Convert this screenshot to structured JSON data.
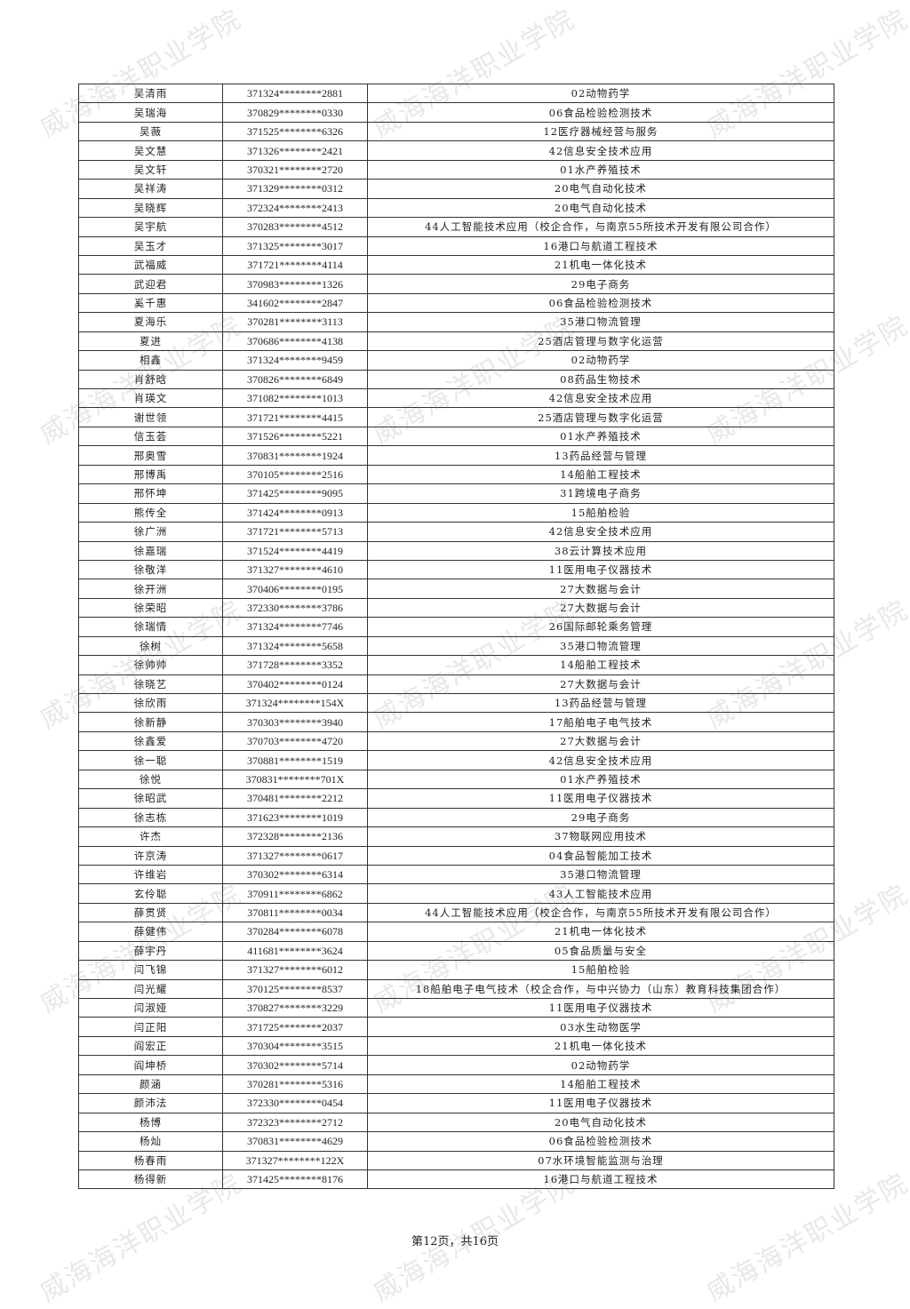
{
  "watermark": "威海海洋职业学院",
  "rows": [
    [
      "吴清雨",
      "371324********2881",
      "02动物药学"
    ],
    [
      "吴瑞海",
      "370829********0330",
      "06食品检验检测技术"
    ],
    [
      "吴薇",
      "371525********6326",
      "12医疗器械经营与服务"
    ],
    [
      "吴文慧",
      "371326********2421",
      "42信息安全技术应用"
    ],
    [
      "吴文轩",
      "370321********2720",
      "01水产养殖技术"
    ],
    [
      "吴祥涛",
      "371329********0312",
      "20电气自动化技术"
    ],
    [
      "吴晓辉",
      "372324********2413",
      "20电气自动化技术"
    ],
    [
      "吴宇航",
      "370283********4512",
      "44人工智能技术应用（校企合作，与南京55所技术开发有限公司合作）"
    ],
    [
      "吴玉才",
      "371325********3017",
      "16港口与航道工程技术"
    ],
    [
      "武福威",
      "371721********4114",
      "21机电一体化技术"
    ],
    [
      "武迎君",
      "370983********1326",
      "29电子商务"
    ],
    [
      "奚千惠",
      "341602********2847",
      "06食品检验检测技术"
    ],
    [
      "夏海乐",
      "370281********3113",
      "35港口物流管理"
    ],
    [
      "夏进",
      "370686********4138",
      "25酒店管理与数字化运营"
    ],
    [
      "相鑫",
      "371324********9459",
      "02动物药学"
    ],
    [
      "肖舒晗",
      "370826********6849",
      "08药品生物技术"
    ],
    [
      "肖瑛文",
      "371082********1013",
      "42信息安全技术应用"
    ],
    [
      "谢世领",
      "371721********4415",
      "25酒店管理与数字化运营"
    ],
    [
      "信玉荟",
      "371526********5221",
      "01水产养殖技术"
    ],
    [
      "邢奥雪",
      "370831********1924",
      "13药品经营与管理"
    ],
    [
      "邢博禹",
      "370105********2516",
      "14船舶工程技术"
    ],
    [
      "邢怀坤",
      "371425********9095",
      "31跨境电子商务"
    ],
    [
      "熊传全",
      "371424********0913",
      "15船舶检验"
    ],
    [
      "徐广洲",
      "371721********5713",
      "42信息安全技术应用"
    ],
    [
      "徐嘉瑞",
      "371524********4419",
      "38云计算技术应用"
    ],
    [
      "徐敬洋",
      "371327********4610",
      "11医用电子仪器技术"
    ],
    [
      "徐开洲",
      "370406********0195",
      "27大数据与会计"
    ],
    [
      "徐荣昭",
      "372330********3786",
      "27大数据与会计"
    ],
    [
      "徐瑞情",
      "371324********7746",
      "26国际邮轮乘务管理"
    ],
    [
      "徐树",
      "371324********5658",
      "35港口物流管理"
    ],
    [
      "徐帅帅",
      "371728********3352",
      "14船舶工程技术"
    ],
    [
      "徐晓艺",
      "370402********0124",
      "27大数据与会计"
    ],
    [
      "徐欣雨",
      "371324********154X",
      "13药品经营与管理"
    ],
    [
      "徐新静",
      "370303********3940",
      "17船舶电子电气技术"
    ],
    [
      "徐鑫爱",
      "370703********4720",
      "27大数据与会计"
    ],
    [
      "徐一聪",
      "370881********1519",
      "42信息安全技术应用"
    ],
    [
      "徐悦",
      "370831********701X",
      "01水产养殖技术"
    ],
    [
      "徐昭武",
      "370481********2212",
      "11医用电子仪器技术"
    ],
    [
      "徐志栋",
      "371623********1019",
      "29电子商务"
    ],
    [
      "许杰",
      "372328********2136",
      "37物联网应用技术"
    ],
    [
      "许京涛",
      "371327********0617",
      "04食品智能加工技术"
    ],
    [
      "许维岩",
      "370302********6314",
      "35港口物流管理"
    ],
    [
      "玄伶聪",
      "370911********6862",
      "43人工智能技术应用"
    ],
    [
      "薛贯贤",
      "370811********0034",
      "44人工智能技术应用（校企合作，与南京55所技术开发有限公司合作）"
    ],
    [
      "薛健伟",
      "370284********6078",
      "21机电一体化技术"
    ],
    [
      "薛宇丹",
      "411681********3624",
      "05食品质量与安全"
    ],
    [
      "闫飞锦",
      "371327********6012",
      "15船舶检验"
    ],
    [
      "闫光耀",
      "370125********8537",
      "18船舶电子电气技术（校企合作，与中兴协力（山东）教育科技集团合作）"
    ],
    [
      "闫淑娅",
      "370827********3229",
      "11医用电子仪器技术"
    ],
    [
      "闫正阳",
      "371725********2037",
      "03水生动物医学"
    ],
    [
      "阎宏正",
      "370304********3515",
      "21机电一体化技术"
    ],
    [
      "阎坤桥",
      "370302********5714",
      "02动物药学"
    ],
    [
      "颜涵",
      "370281********5316",
      "14船舶工程技术"
    ],
    [
      "颜沛法",
      "372330********0454",
      "11医用电子仪器技术"
    ],
    [
      "杨博",
      "372323********2712",
      "20电气自动化技术"
    ],
    [
      "杨灿",
      "370831********4629",
      "06食品检验检测技术"
    ],
    [
      "杨春雨",
      "371327********122X",
      "07水环境智能监测与治理"
    ],
    [
      "杨得新",
      "371425********8176",
      "16港口与航道工程技术"
    ]
  ],
  "footer": "第12页，共16页"
}
